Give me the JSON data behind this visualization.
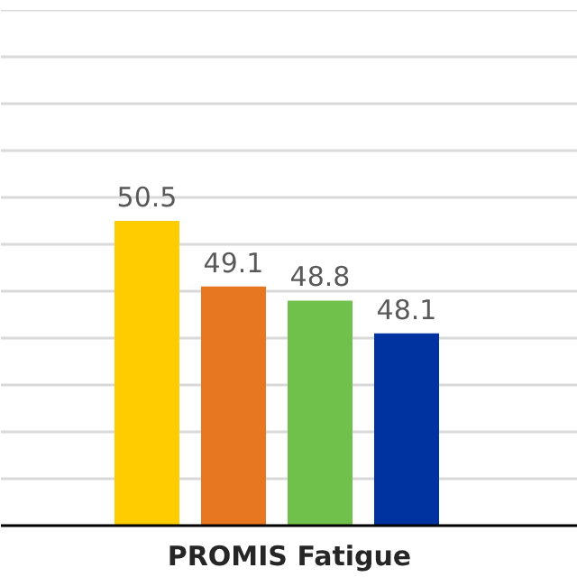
{
  "chart_data": {
    "type": "bar",
    "xlabel": "PROMIS Fatigue",
    "categories": [
      null,
      null,
      null,
      null
    ],
    "values": [
      50.5,
      49.1,
      48.8,
      48.1
    ],
    "colors": [
      "#ffcc00",
      "#e87722",
      "#70c04c",
      "#0033a0"
    ],
    "ylim": [
      44,
      55
    ],
    "yticks": [
      {
        "value": 44,
        "label": null
      },
      {
        "value": 45,
        "label": null
      },
      {
        "value": 46,
        "label": null
      },
      {
        "value": 47,
        "label": null
      },
      {
        "value": 48,
        "label": null
      },
      {
        "value": 49,
        "label": null
      },
      {
        "value": 50,
        "label": null
      },
      {
        "value": 51,
        "label": null
      },
      {
        "value": 52,
        "label": null
      },
      {
        "value": 53,
        "label": null
      },
      {
        "value": 54,
        "label": null
      },
      {
        "value": 55,
        "label": null
      }
    ],
    "grid": "y",
    "data_labels": true
  }
}
